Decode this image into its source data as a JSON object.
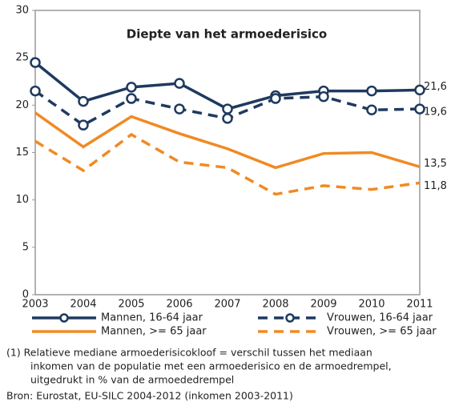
{
  "chart_data": {
    "type": "line",
    "title": "Diepte van het armoederisico",
    "categories": [
      "2003",
      "2004",
      "2005",
      "2006",
      "2007",
      "2008",
      "2009",
      "2010",
      "2011"
    ],
    "ylim": [
      0,
      30
    ],
    "yticks": [
      0,
      5,
      10,
      15,
      20,
      25,
      30
    ],
    "series": [
      {
        "name": "Mannen, 16-64 jaar",
        "color": "#1f3a5f",
        "dashed": false,
        "markers": true,
        "values": [
          24.5,
          20.4,
          21.9,
          22.3,
          19.6,
          21.0,
          21.5,
          21.5,
          21.6
        ],
        "value_labels": [
          null,
          null,
          null,
          null,
          null,
          null,
          null,
          null,
          "21,6"
        ]
      },
      {
        "name": "Vrouwen, 16-64 jaar",
        "color": "#1f3a5f",
        "dashed": true,
        "markers": true,
        "values": [
          21.5,
          17.9,
          20.7,
          19.6,
          18.6,
          20.7,
          20.9,
          19.5,
          19.6
        ],
        "value_labels": [
          null,
          null,
          null,
          null,
          null,
          null,
          null,
          null,
          "19,6"
        ]
      },
      {
        "name": "Mannen, >= 65 jaar",
        "color": "#f08a24",
        "dashed": false,
        "markers": false,
        "values": [
          19.2,
          15.6,
          18.8,
          17.0,
          15.4,
          13.4,
          14.9,
          15.0,
          13.5
        ],
        "value_labels": [
          null,
          null,
          null,
          null,
          null,
          null,
          null,
          null,
          "13,5"
        ]
      },
      {
        "name": "Vrouwen, >= 65 jaar",
        "color": "#f08a24",
        "dashed": true,
        "markers": false,
        "values": [
          16.2,
          13.1,
          16.9,
          14.0,
          13.4,
          10.6,
          11.5,
          11.1,
          11.8
        ],
        "value_labels": [
          null,
          null,
          null,
          null,
          null,
          null,
          null,
          null,
          "11,8"
        ]
      }
    ]
  },
  "notes": [
    "(1) Relatieve mediane armoederisicokloof = verschil tussen het mediaan",
    "inkomen van de populatie met een armoederisico en de armoedrempel,",
    "uitgedrukt in % van de armoededrempel"
  ],
  "source": "Bron: Eurostat, EU-SILC 2004-2012 (inkomen 2003-2011)"
}
